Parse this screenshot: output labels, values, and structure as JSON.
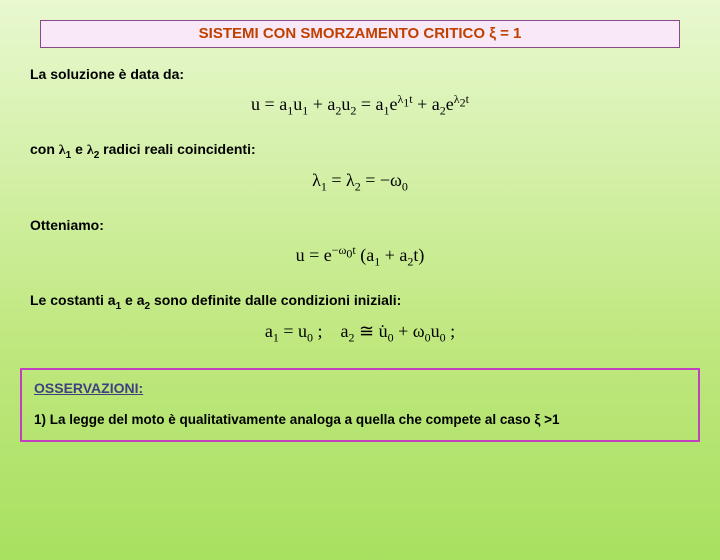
{
  "title": "SISTEMI CON SMORZAMENTO CRITICO ξ = 1",
  "line1": "La soluzione è data da:",
  "formula1": "u = a₁u₁ + a₂u₂ = a₁e<sup>λ₁t</sup> + a₂e<sup>λ₂t</sup>",
  "line2_pre": "con ",
  "line2_l1": "λ",
  "line2_s1": "1",
  "line2_mid": " e ",
  "line2_l2": "λ",
  "line2_s2": "2",
  "line2_post": "  radici reali coincidenti:",
  "formula2": "λ₁ = λ₂ = −ω₀",
  "line3": "Otteniamo:",
  "formula3": "u = e<sup>−ω₀t</sup> (a₁ + a₂t)",
  "line4_pre": "Le costanti a",
  "line4_s1": "1",
  "line4_mid": " e a",
  "line4_s2": "2",
  "line4_post": " sono definite dalle condizioni iniziali:",
  "formula4": "a₁ = u₀ ;    a₂ ≅ u̇₀ + ω₀u₀ ;",
  "obs_title": "OSSERVAZIONI:",
  "obs_line1": " 1) La legge del moto è qualitativamente analoga a quella che compete al caso ξ >1",
  "colors": {
    "title_bg": "#f8e8f8",
    "title_border": "#8a4a8a",
    "title_text": "#c04000",
    "obs_border": "#c040c0",
    "obs_title": "#404080",
    "bg_top": "#e8f8d0",
    "bg_bottom": "#a8e060"
  }
}
